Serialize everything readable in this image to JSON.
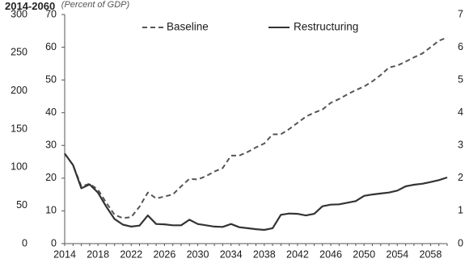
{
  "chart_data": {
    "type": "line",
    "title": "2014-2060",
    "subtitle": "(Percent of GDP)",
    "x": [
      2014,
      2015,
      2016,
      2017,
      2018,
      2019,
      2020,
      2021,
      2022,
      2023,
      2024,
      2025,
      2026,
      2027,
      2028,
      2029,
      2030,
      2031,
      2032,
      2033,
      2034,
      2035,
      2036,
      2037,
      2038,
      2039,
      2040,
      2041,
      2042,
      2043,
      2044,
      2045,
      2046,
      2047,
      2048,
      2049,
      2050,
      2051,
      2052,
      2053,
      2054,
      2055,
      2056,
      2057,
      2058,
      2059,
      2060
    ],
    "xlim": [
      2014,
      2060
    ],
    "x_tick_labels": [
      "2014",
      "2018",
      "2022",
      "2026",
      "2030",
      "2034",
      "2038",
      "2042",
      "2046",
      "2050",
      "2054",
      "2058"
    ],
    "x_ticks": [
      2014,
      2018,
      2022,
      2026,
      2030,
      2034,
      2038,
      2042,
      2046,
      2050,
      2054,
      2058
    ],
    "left_axis_outer": {
      "ticks": [
        0,
        50,
        100,
        150,
        200,
        250,
        300
      ],
      "ylim": [
        0,
        300
      ]
    },
    "left_axis_inner": {
      "ticks": [
        0,
        10,
        20,
        30,
        40,
        50,
        60,
        70
      ],
      "ylim": [
        0,
        70
      ]
    },
    "right_axis": {
      "tick_labels": [
        "0",
        "1",
        "2",
        "3",
        "4",
        "5",
        "6",
        "7"
      ],
      "ylim": [
        0,
        70
      ]
    },
    "legend": {
      "placement": "top",
      "entries": [
        {
          "name": "Baseline",
          "style": "dashed"
        },
        {
          "name": "Restructuring",
          "style": "solid"
        }
      ]
    },
    "grid": false,
    "series": [
      {
        "name": "Baseline",
        "style": "dashed",
        "color": "#555555",
        "values": [
          27.5,
          24,
          17.5,
          18.3,
          16.5,
          12.5,
          8.8,
          7.8,
          8.1,
          11.3,
          15.6,
          13.8,
          14.4,
          15,
          17.5,
          19.8,
          19.6,
          20.6,
          22,
          23.1,
          26.9,
          26.9,
          28,
          29.4,
          30.6,
          33.4,
          33.4,
          35,
          36.9,
          38.8,
          40,
          41,
          43,
          44.2,
          45.6,
          46.9,
          48,
          49.6,
          51.5,
          53.8,
          54.4,
          55.6,
          56.9,
          58.1,
          60,
          62,
          63
        ]
      },
      {
        "name": "Restructuring",
        "style": "solid",
        "color": "#333333",
        "values": [
          27.5,
          24,
          16.9,
          18.1,
          15.6,
          11.3,
          7.5,
          5.8,
          5.2,
          5.5,
          8.6,
          6,
          5.9,
          5.6,
          5.6,
          7.3,
          6,
          5.6,
          5.2,
          5.1,
          6,
          5,
          4.7,
          4.4,
          4.2,
          4.7,
          8.8,
          9.2,
          9.1,
          8.6,
          9.1,
          11.4,
          11.9,
          12,
          12.5,
          13,
          14.6,
          15,
          15.3,
          15.6,
          16.2,
          17.5,
          18,
          18.3,
          18.8,
          19.4,
          20.2
        ]
      }
    ]
  }
}
